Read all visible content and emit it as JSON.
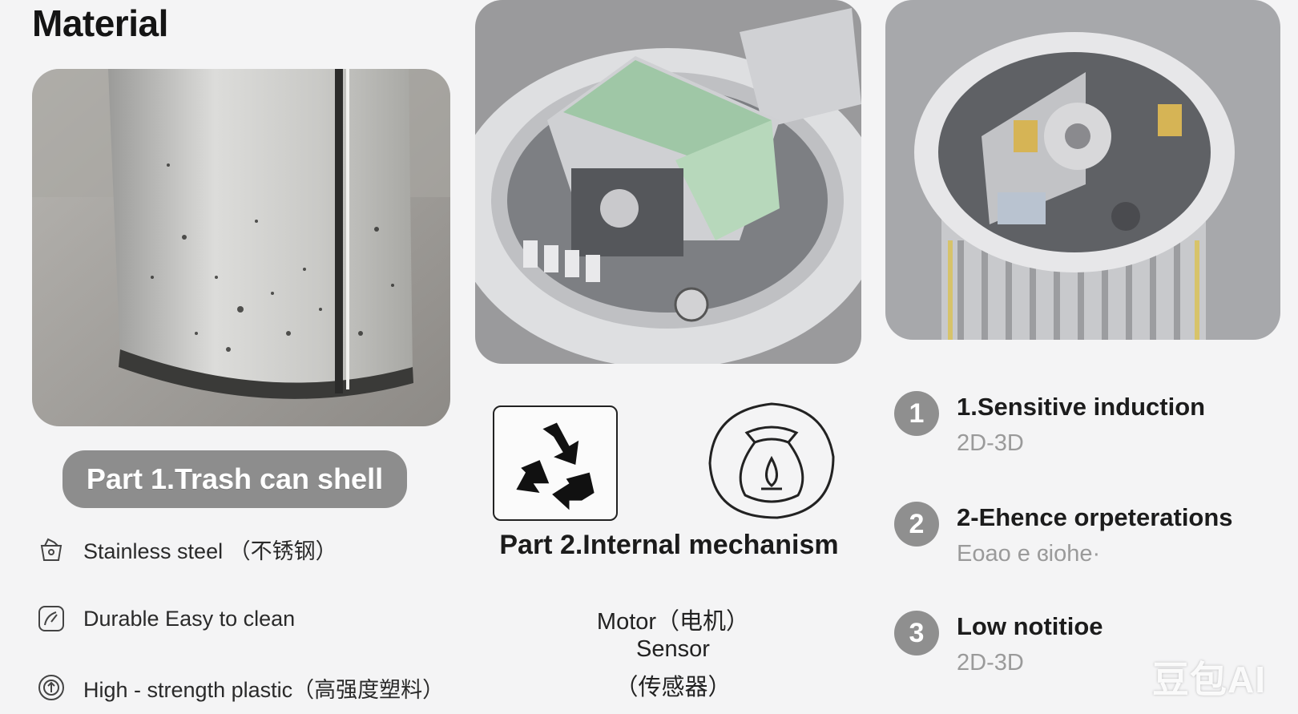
{
  "header": {
    "title": "Material"
  },
  "part1": {
    "label": "Part 1.Trash can shell",
    "features": [
      {
        "icon": "stainless-steel-icon",
        "text": "Stainless steel （不锈钢）"
      },
      {
        "icon": "durable-gauge-icon",
        "text": "Durable   Easy to clean"
      },
      {
        "icon": "plastic-pellet-icon",
        "text": "High - strength plastic（高强度塑料）"
      }
    ]
  },
  "part2": {
    "label": "Part 2.Internal mechanism",
    "icons": [
      "recycle-icon",
      "trash-bag-icon"
    ],
    "lines": [
      "Motor（电机）",
      "Sensor",
      "（传感器）"
    ]
  },
  "steps": [
    {
      "number": "1",
      "title": "1.Sensitive induction",
      "subtitle": "2D-3D"
    },
    {
      "number": "2",
      "title": "2-Ehence orpeterations",
      "subtitle": "Eoao e ɞiohe·"
    },
    {
      "number": "3",
      "title": "Low notitioe",
      "subtitle": "2D-3D"
    }
  ],
  "watermark": "豆包AI",
  "colors": {
    "pill": "#8d8d8d",
    "number_badge": "#8f8f8f",
    "background": "#f4f4f5"
  }
}
